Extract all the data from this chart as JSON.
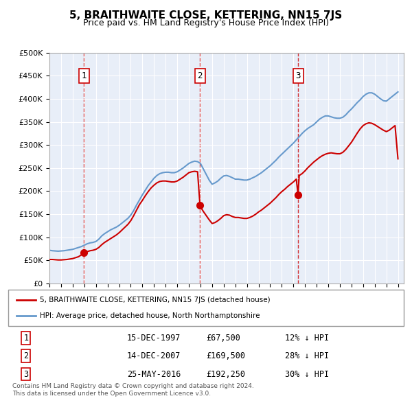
{
  "title": "5, BRAITHWAITE CLOSE, KETTERING, NN15 7JS",
  "subtitle": "Price paid vs. HM Land Registry's House Price Index (HPI)",
  "background_color": "#e8eef8",
  "plot_bg_color": "#e8eef8",
  "ylabel_ticks": [
    "£0",
    "£50K",
    "£100K",
    "£150K",
    "£200K",
    "£250K",
    "£300K",
    "£350K",
    "£400K",
    "£450K",
    "£500K"
  ],
  "ytick_values": [
    0,
    50000,
    100000,
    150000,
    200000,
    250000,
    300000,
    350000,
    400000,
    450000,
    500000
  ],
  "ylim": [
    0,
    500000
  ],
  "xlim_start": 1995.0,
  "xlim_end": 2025.5,
  "sale_dates": [
    1997.96,
    2007.96,
    2016.4
  ],
  "sale_prices": [
    67500,
    169500,
    192250
  ],
  "sale_labels": [
    "1",
    "2",
    "3"
  ],
  "legend_property": "5, BRAITHWAITE CLOSE, KETTERING, NN15 7JS (detached house)",
  "legend_hpi": "HPI: Average price, detached house, North Northamptonshire",
  "table_rows": [
    [
      "1",
      "15-DEC-1997",
      "£67,500",
      "12% ↓ HPI"
    ],
    [
      "2",
      "14-DEC-2007",
      "£169,500",
      "28% ↓ HPI"
    ],
    [
      "3",
      "25-MAY-2016",
      "£192,250",
      "30% ↓ HPI"
    ]
  ],
  "footnote1": "Contains HM Land Registry data © Crown copyright and database right 2024.",
  "footnote2": "This data is licensed under the Open Government Licence v3.0.",
  "line_color_property": "#cc0000",
  "line_color_hpi": "#6699cc",
  "marker_color": "#cc0000",
  "dashed_color": "#cc0000",
  "hpi_data": {
    "years": [
      1995.0,
      1995.25,
      1995.5,
      1995.75,
      1996.0,
      1996.25,
      1996.5,
      1996.75,
      1997.0,
      1997.25,
      1997.5,
      1997.75,
      1998.0,
      1998.25,
      1998.5,
      1998.75,
      1999.0,
      1999.25,
      1999.5,
      1999.75,
      2000.0,
      2000.25,
      2000.5,
      2000.75,
      2001.0,
      2001.25,
      2001.5,
      2001.75,
      2002.0,
      2002.25,
      2002.5,
      2002.75,
      2003.0,
      2003.25,
      2003.5,
      2003.75,
      2004.0,
      2004.25,
      2004.5,
      2004.75,
      2005.0,
      2005.25,
      2005.5,
      2005.75,
      2006.0,
      2006.25,
      2006.5,
      2006.75,
      2007.0,
      2007.25,
      2007.5,
      2007.75,
      2008.0,
      2008.25,
      2008.5,
      2008.75,
      2009.0,
      2009.25,
      2009.5,
      2009.75,
      2010.0,
      2010.25,
      2010.5,
      2010.75,
      2011.0,
      2011.25,
      2011.5,
      2011.75,
      2012.0,
      2012.25,
      2012.5,
      2012.75,
      2013.0,
      2013.25,
      2013.5,
      2013.75,
      2014.0,
      2014.25,
      2014.5,
      2014.75,
      2015.0,
      2015.25,
      2015.5,
      2015.75,
      2016.0,
      2016.25,
      2016.5,
      2016.75,
      2017.0,
      2017.25,
      2017.5,
      2017.75,
      2018.0,
      2018.25,
      2018.5,
      2018.75,
      2019.0,
      2019.25,
      2019.5,
      2019.75,
      2020.0,
      2020.25,
      2020.5,
      2020.75,
      2021.0,
      2021.25,
      2021.5,
      2021.75,
      2022.0,
      2022.25,
      2022.5,
      2022.75,
      2023.0,
      2023.25,
      2023.5,
      2023.75,
      2024.0,
      2024.25,
      2024.5,
      2024.75,
      2025.0
    ],
    "values": [
      72000,
      71000,
      70500,
      70000,
      70500,
      71000,
      72000,
      73000,
      74000,
      76000,
      78000,
      80000,
      83000,
      86000,
      88000,
      89000,
      91000,
      96000,
      103000,
      108000,
      112000,
      116000,
      119000,
      122000,
      126000,
      131000,
      136000,
      141000,
      148000,
      158000,
      170000,
      181000,
      192000,
      202000,
      212000,
      220000,
      228000,
      234000,
      238000,
      240000,
      241000,
      241000,
      240000,
      240000,
      242000,
      246000,
      250000,
      255000,
      260000,
      263000,
      265000,
      264000,
      260000,
      248000,
      236000,
      224000,
      215000,
      218000,
      222000,
      228000,
      233000,
      234000,
      232000,
      229000,
      226000,
      226000,
      225000,
      224000,
      224000,
      226000,
      229000,
      232000,
      236000,
      240000,
      245000,
      250000,
      255000,
      261000,
      267000,
      274000,
      280000,
      286000,
      292000,
      298000,
      304000,
      311000,
      318000,
      325000,
      331000,
      336000,
      340000,
      344000,
      350000,
      356000,
      360000,
      363000,
      363000,
      361000,
      359000,
      358000,
      358000,
      360000,
      365000,
      372000,
      378000,
      385000,
      392000,
      398000,
      405000,
      410000,
      413000,
      413000,
      410000,
      405000,
      400000,
      396000,
      395000,
      400000,
      405000,
      410000,
      415000
    ]
  },
  "property_data": {
    "years": [
      1995.0,
      1995.25,
      1995.5,
      1995.75,
      1996.0,
      1996.25,
      1996.5,
      1996.75,
      1997.0,
      1997.25,
      1997.5,
      1997.75,
      1997.96,
      1998.0,
      1998.25,
      1998.5,
      1998.75,
      1999.0,
      1999.25,
      1999.5,
      1999.75,
      2000.0,
      2000.25,
      2000.5,
      2000.75,
      2001.0,
      2001.25,
      2001.5,
      2001.75,
      2002.0,
      2002.25,
      2002.5,
      2002.75,
      2003.0,
      2003.25,
      2003.5,
      2003.75,
      2004.0,
      2004.25,
      2004.5,
      2004.75,
      2005.0,
      2005.25,
      2005.5,
      2005.75,
      2006.0,
      2006.25,
      2006.5,
      2006.75,
      2007.0,
      2007.25,
      2007.5,
      2007.75,
      2007.96,
      2008.0,
      2008.25,
      2008.5,
      2008.75,
      2009.0,
      2009.25,
      2009.5,
      2009.75,
      2010.0,
      2010.25,
      2010.5,
      2010.75,
      2011.0,
      2011.25,
      2011.5,
      2011.75,
      2012.0,
      2012.25,
      2012.5,
      2012.75,
      2013.0,
      2013.25,
      2013.5,
      2013.75,
      2014.0,
      2014.25,
      2014.5,
      2014.75,
      2015.0,
      2015.25,
      2015.5,
      2015.75,
      2016.0,
      2016.25,
      2016.4,
      2016.5,
      2016.75,
      2017.0,
      2017.25,
      2017.5,
      2017.75,
      2018.0,
      2018.25,
      2018.5,
      2018.75,
      2019.0,
      2019.25,
      2019.5,
      2019.75,
      2020.0,
      2020.25,
      2020.5,
      2020.75,
      2021.0,
      2021.25,
      2021.5,
      2021.75,
      2022.0,
      2022.25,
      2022.5,
      2022.75,
      2023.0,
      2023.25,
      2023.5,
      2023.75,
      2024.0,
      2024.25,
      2024.5,
      2024.75,
      2025.0
    ],
    "values": [
      52000,
      52000,
      51500,
      51000,
      51000,
      51500,
      52000,
      53000,
      54000,
      56000,
      58000,
      62000,
      67500,
      67500,
      69000,
      71000,
      72000,
      74000,
      78000,
      84000,
      89000,
      93000,
      97000,
      101000,
      105000,
      110000,
      116000,
      122000,
      128000,
      136000,
      147000,
      159000,
      171000,
      180000,
      190000,
      199000,
      207000,
      213000,
      218000,
      221000,
      222000,
      222000,
      221000,
      220000,
      220000,
      222000,
      226000,
      230000,
      235000,
      240000,
      242000,
      243000,
      242000,
      169500,
      166000,
      156000,
      147000,
      138000,
      130000,
      132000,
      136000,
      141000,
      147000,
      149000,
      148000,
      145000,
      143000,
      143000,
      142000,
      141000,
      141000,
      143000,
      146000,
      150000,
      155000,
      159000,
      164000,
      169000,
      174000,
      180000,
      186000,
      193000,
      199000,
      204000,
      210000,
      215000,
      220000,
      226000,
      192250,
      234000,
      238000,
      244000,
      251000,
      257000,
      263000,
      268000,
      273000,
      277000,
      280000,
      282000,
      283000,
      282000,
      281000,
      281000,
      284000,
      290000,
      298000,
      306000,
      316000,
      326000,
      335000,
      342000,
      346000,
      348000,
      347000,
      344000,
      340000,
      336000,
      332000,
      329000,
      332000,
      337000,
      342000,
      270000
    ]
  }
}
